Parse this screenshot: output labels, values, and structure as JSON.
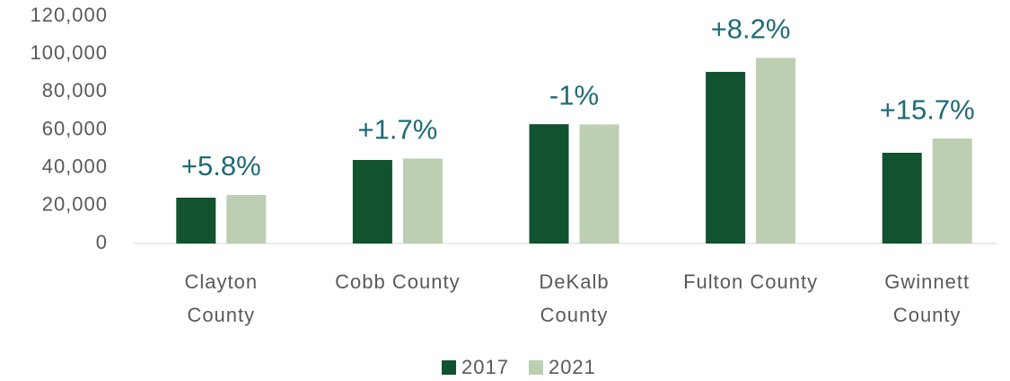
{
  "chart_data": {
    "type": "bar",
    "categories": [
      "Clayton\nCounty",
      "Cobb County",
      "DeKalb\nCounty",
      "Fulton County",
      "Gwinnett\nCounty"
    ],
    "series": [
      {
        "name": "2017",
        "color": "#11522f",
        "values": [
          24200,
          44100,
          63000,
          90600,
          47900
        ]
      },
      {
        "name": "2021",
        "color": "#bccfb1",
        "values": [
          25600,
          44850,
          62900,
          98000,
          55400
        ]
      }
    ],
    "annotations": [
      "+5.8%",
      "+1.7%",
      "-1%",
      "+8.2%",
      "+15.7%"
    ],
    "ylim": [
      0,
      120000
    ],
    "yticks": [
      {
        "value": 0,
        "label": "0"
      },
      {
        "value": 20000,
        "label": "20,000"
      },
      {
        "value": 40000,
        "label": "40,000"
      },
      {
        "value": 60000,
        "label": "60,000"
      },
      {
        "value": 80000,
        "label": "80,000"
      },
      {
        "value": 100000,
        "label": "100,000"
      },
      {
        "value": 120000,
        "label": "120,000"
      }
    ],
    "grid": false,
    "legend": "bottom"
  }
}
